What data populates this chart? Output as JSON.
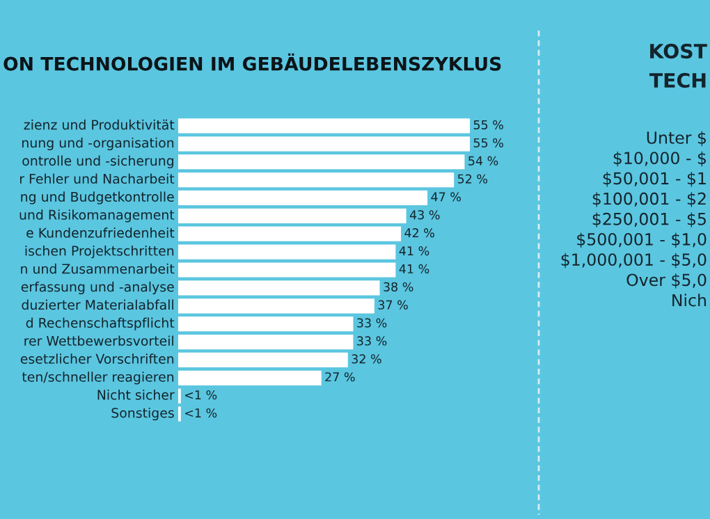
{
  "chart_data": [
    {
      "type": "bar",
      "orientation": "horizontal",
      "title": "ON TECHNOLOGIEN IM GEBÄUDELEBENSZYKLUS",
      "categories": [
        "zienz und Produktivität",
        "nung und -organisation",
        "ontrolle und -sicherung",
        "r Fehler und Nacharbeit",
        "ng und Budgetkontrolle",
        "und Risikomanagement",
        "e Kundenzufriedenheit",
        "ischen Projektschritten",
        "n und Zusammenarbeit",
        "erfassung und -analyse",
        "duzierter Materialabfall",
        "d Rechenschaftspflicht",
        "rer Wettbewerbsvorteil",
        "esetzlicher Vorschriften",
        "ten/schneller reagieren",
        "Nicht sicher",
        "Sonstiges"
      ],
      "values": [
        55,
        55,
        54,
        52,
        47,
        43,
        42,
        41,
        41,
        38,
        37,
        33,
        33,
        32,
        27,
        0.5,
        0.5
      ],
      "value_labels": [
        "55 %",
        "55 %",
        "54 %",
        "52 %",
        "47 %",
        "43 %",
        "42 %",
        "41 %",
        "41 %",
        "38 %",
        "37 %",
        "33 %",
        "33 %",
        "32 %",
        "27 %",
        "<1 %",
        "<1 %"
      ],
      "color": "#ffffff"
    },
    {
      "type": "other",
      "annotations": [
        "KOST",
        "TECH",
        "Unter $",
        "$10,000 - $",
        "$50,001 - $1",
        "$100,001 - $2",
        "$250,001 - $5",
        "$500,001 - $1,0",
        "$1,000,001 - $5,0",
        "Over $5,0",
        "Nich"
      ]
    }
  ]
}
